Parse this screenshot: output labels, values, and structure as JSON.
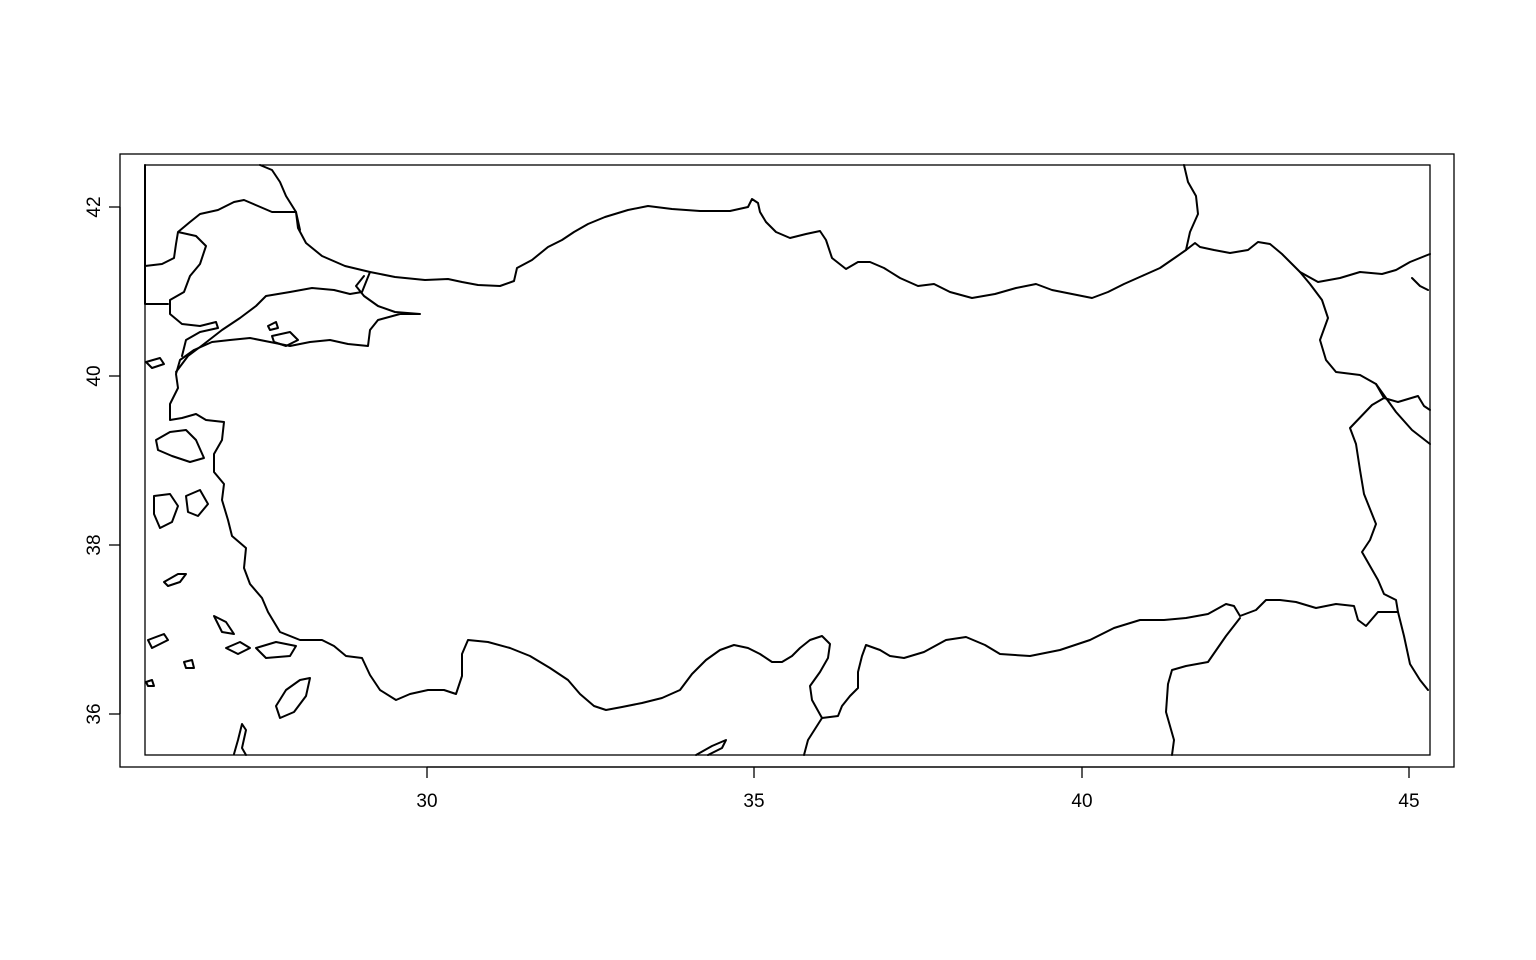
{
  "chart_data": {
    "type": "map",
    "title": "",
    "xlabel": "",
    "ylabel": "",
    "x_ticks": [
      "30",
      "35",
      "40",
      "45"
    ],
    "y_ticks": [
      "36",
      "38",
      "40",
      "42"
    ],
    "xlim": [
      25.3,
      45.7
    ],
    "ylim": [
      35.4,
      42.65
    ],
    "grid": false,
    "legend": "none",
    "line_color": "#000000"
  }
}
